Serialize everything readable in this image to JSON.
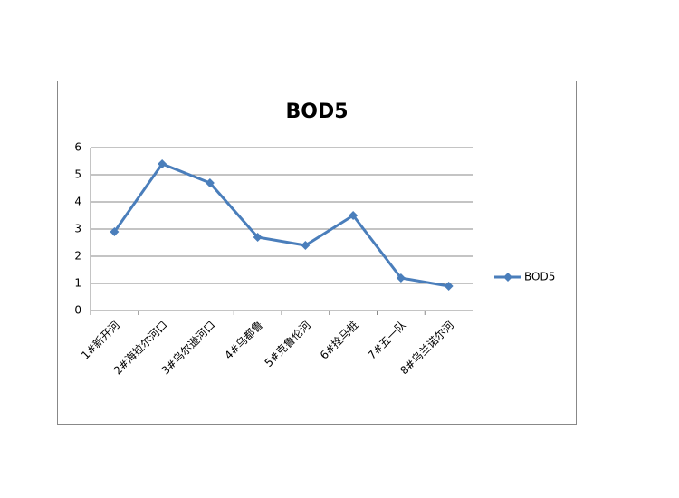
{
  "chart_data": {
    "type": "line",
    "title": "BOD5",
    "categories": [
      "1#新开河",
      "2#海拉尔河口",
      "3#乌尔逊河口",
      "4#乌都鲁",
      "5#克鲁伦河",
      "6#拴马桩",
      "7#五一队",
      "8#乌兰诺尔河"
    ],
    "series": [
      {
        "name": "BOD5",
        "color": "#4a7ebb",
        "values": [
          2.9,
          5.4,
          4.7,
          2.7,
          2.4,
          3.5,
          1.2,
          0.9
        ]
      }
    ],
    "ylim": [
      0,
      6
    ],
    "yticks": [
      0,
      1,
      2,
      3,
      4,
      5,
      6
    ],
    "grid": true,
    "legend": "right"
  }
}
